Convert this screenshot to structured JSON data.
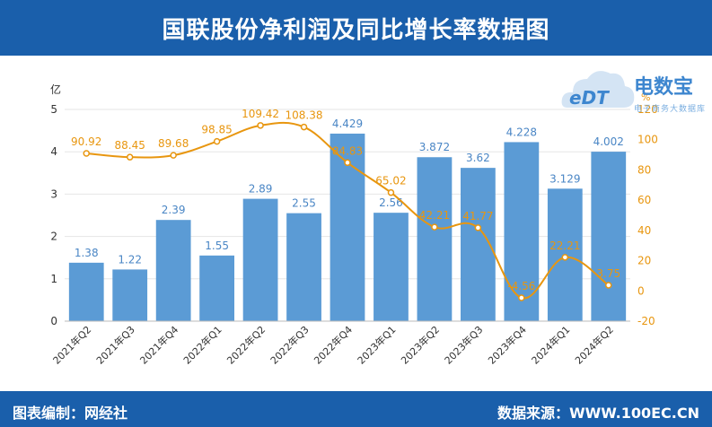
{
  "header": {
    "title": "国联股份净利润及同比增长率数据图"
  },
  "footer": {
    "editor": "图表编制：网经社",
    "source": "数据来源：WWW.100EC.CN"
  },
  "logo": {
    "brand": "电数宝",
    "sub": "电子商务大数据库",
    "mark": "eDT"
  },
  "colors": {
    "bar": "#5b9bd5",
    "line": "#e8960f",
    "bar_label": "#4a86c5",
    "line_label": "#e8960f",
    "header_bg": "#1a5fab"
  },
  "chart_data": {
    "type": "bar+line",
    "categories": [
      "2021年Q2",
      "2021年Q3",
      "2021年Q4",
      "2022年Q1",
      "2022年Q2",
      "2022年Q3",
      "2022年Q4",
      "2023年Q1",
      "2023年Q2",
      "2023年Q3",
      "2023年Q4",
      "2024年Q1",
      "2024年Q2"
    ],
    "series": [
      {
        "name": "净利润",
        "type": "bar",
        "axis": "left",
        "values": [
          1.38,
          1.22,
          2.39,
          1.55,
          2.89,
          2.55,
          4.429,
          2.56,
          3.872,
          3.62,
          4.228,
          3.129,
          4.002
        ],
        "labels": [
          "1.38",
          "1.22",
          "2.39",
          "1.55",
          "2.89",
          "2.55",
          "4.429",
          "2.56",
          "3.872",
          "3.62",
          "4.228",
          "3.129",
          "4.002"
        ]
      },
      {
        "name": "同比增长率",
        "type": "line",
        "axis": "right",
        "values": [
          90.92,
          88.45,
          89.68,
          98.85,
          109.42,
          108.38,
          84.83,
          65.02,
          42.21,
          41.77,
          -4.56,
          22.21,
          3.75
        ],
        "labels": [
          "90.92",
          "88.45",
          "89.68",
          "98.85",
          "109.42",
          "108.38",
          "84.83",
          "65.02",
          "42.21",
          "41.77",
          "-4.56",
          "22.21",
          "3.75"
        ]
      }
    ],
    "y_left": {
      "label": "亿",
      "min": 0,
      "max": 5,
      "ticks": [
        0,
        1,
        2,
        3,
        4,
        5
      ]
    },
    "y_right": {
      "label": "%",
      "min": -20,
      "max": 120,
      "ticks": [
        -20,
        0,
        20,
        40,
        60,
        80,
        100,
        120
      ]
    }
  }
}
